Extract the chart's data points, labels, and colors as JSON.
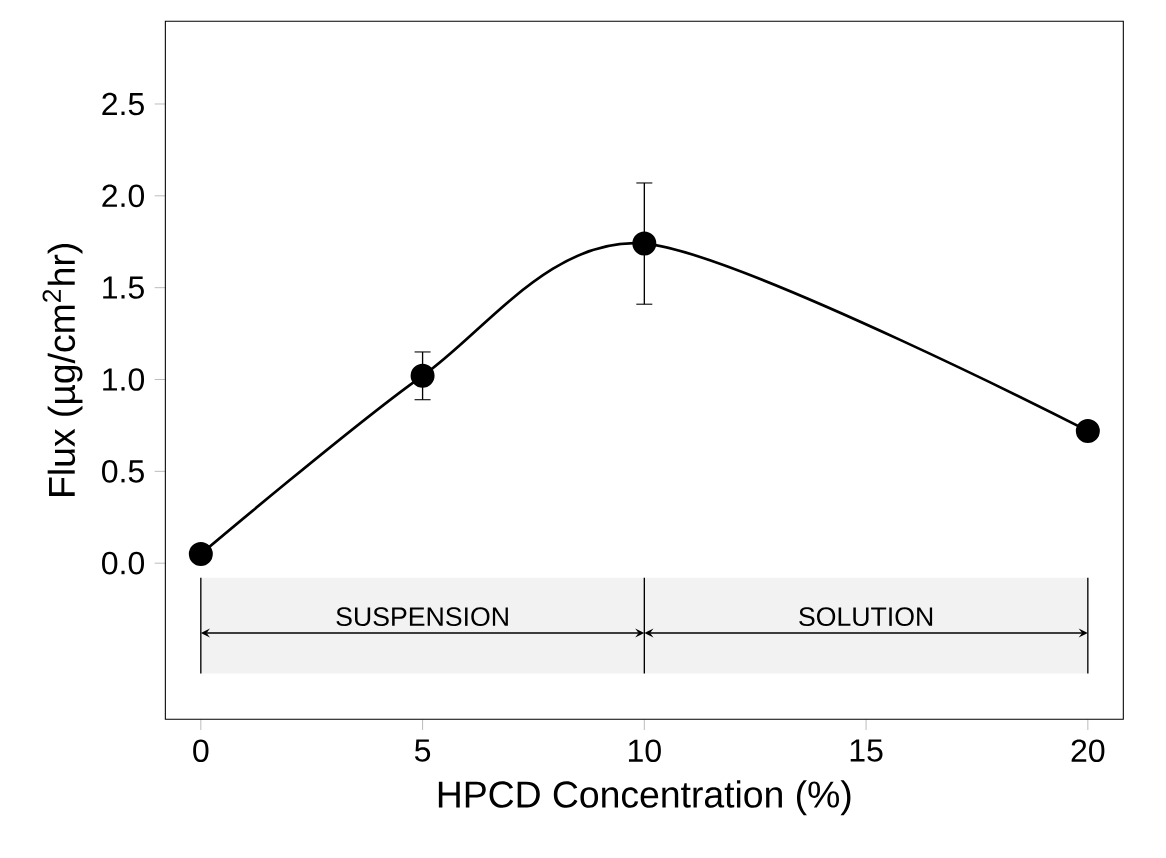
{
  "chart_data": {
    "type": "line",
    "xlabel": "HPCD Concentration (%)",
    "ylabel": "Flux (µg/cm$^{2}$hr)",
    "xlim": [
      -0.8,
      20.8
    ],
    "ylim": [
      -0.85,
      2.95
    ],
    "xticks": [
      0,
      5,
      10,
      15,
      20
    ],
    "yticks": [
      {
        "value": 0,
        "label": "0.0"
      },
      0.5,
      {
        "value": 1,
        "label": "1.0"
      },
      1.5,
      {
        "value": 2,
        "label": "2.0"
      },
      2.5
    ],
    "marker": "circle",
    "grid": false,
    "series": [
      {
        "color": "#000000",
        "x": [
          0,
          5,
          10,
          20
        ],
        "values": [
          0.05,
          1.02,
          1.74,
          0.72
        ],
        "errors": [
          null,
          0.13,
          [
            1.41,
            2.07
          ],
          null
        ]
      }
    ],
    "bands": [
      {
        "axis": "x",
        "from": 0,
        "to": 10,
        "label": "SUSPENSION",
        "color": "#f2f2f2"
      },
      {
        "axis": "x",
        "from": 10,
        "to": 20,
        "label": "SOLUTION",
        "color": "#f2f2f2"
      }
    ],
    "ref_lines": [
      {
        "axis": "x",
        "value": 0
      },
      {
        "axis": "x",
        "value": 10
      },
      {
        "axis": "x",
        "value": 20
      }
    ]
  }
}
